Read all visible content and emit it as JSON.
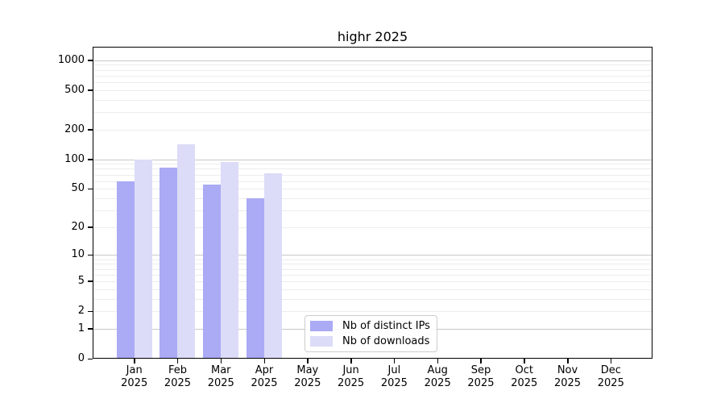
{
  "figure": {
    "title": "highr 2025"
  },
  "chart_data": {
    "type": "bar",
    "title": "highr 2025",
    "categories": [
      "Jan 2025",
      "Feb 2025",
      "Mar 2025",
      "Apr 2025",
      "May 2025",
      "Jun 2025",
      "Jul 2025",
      "Aug 2025",
      "Sep 2025",
      "Oct 2025",
      "Nov 2025",
      "Dec 2025"
    ],
    "series": [
      {
        "name": "Nb of distinct IPs",
        "color": "#aaaaf5",
        "values": [
          60,
          83,
          55,
          40,
          null,
          null,
          null,
          null,
          null,
          null,
          null,
          null
        ]
      },
      {
        "name": "Nb of downloads",
        "color": "#dcdcf8",
        "values": [
          100,
          142,
          94,
          72,
          null,
          null,
          null,
          null,
          null,
          null,
          null,
          null
        ]
      }
    ],
    "xlabel": "",
    "ylabel": "",
    "yscale": "log1p",
    "yticks": [
      0,
      1,
      2,
      5,
      10,
      20,
      50,
      100,
      200,
      500,
      1000
    ],
    "ylim": [
      0,
      1340
    ],
    "grid": "horizontal major (powers of 10) and faint minor gridlines",
    "legend_position": "inside, lower-center-left",
    "colors": {
      "major_grid": "#c8c8c8",
      "minor_grid": "#ececec",
      "spine": "#000000",
      "background": "#ffffff"
    }
  }
}
